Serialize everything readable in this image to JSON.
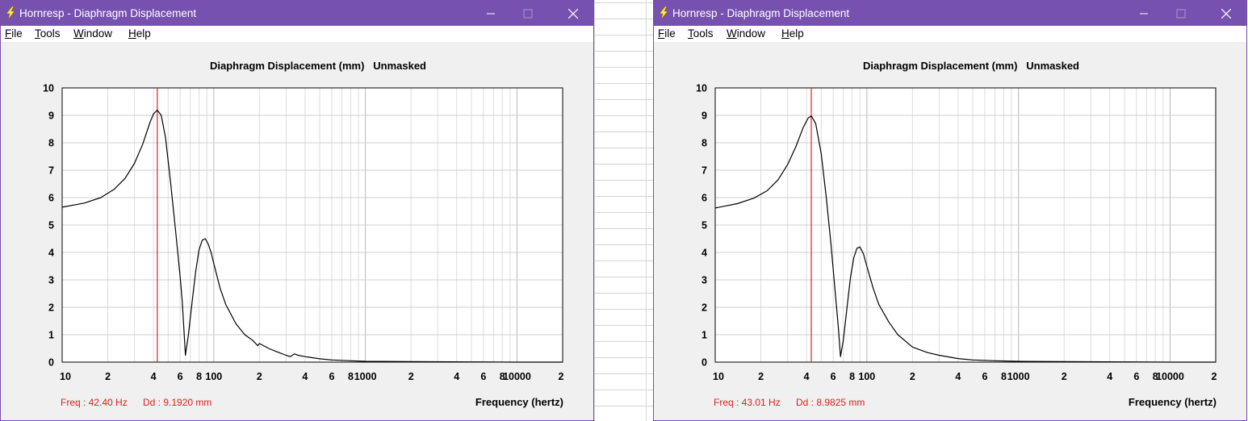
{
  "windows": [
    {
      "title": "Hornresp - Diaphragm Displacement",
      "menu": [
        {
          "label": "File",
          "accel": "F",
          "rest": "ile"
        },
        {
          "label": "Tools",
          "accel": "T",
          "rest": "ools"
        },
        {
          "label": "Window",
          "accel": "W",
          "rest": "indow"
        },
        {
          "label": "Help",
          "accel": "H",
          "rest": "elp"
        }
      ],
      "chart_title": "Diaphragm Displacement (mm)   Unmasked",
      "readout_freq": "Freq : 42.40 Hz",
      "readout_dd": "Dd : 9.1920 mm",
      "xlabel": "Frequency (hertz)",
      "chart_data": {
        "type": "line",
        "title": "Diaphragm Displacement (mm)   Unmasked",
        "xlabel": "Frequency (hertz)",
        "ylabel": "",
        "xscale": "log",
        "xlim": [
          10,
          20000
        ],
        "ylim": [
          0,
          10
        ],
        "grid": true,
        "x_tick_labels": [
          "10",
          "2",
          "4",
          "6",
          "8",
          "100",
          "2",
          "4",
          "6",
          "8",
          "1000",
          "2",
          "4",
          "6",
          "8",
          "10000",
          "2"
        ],
        "y_tick_labels": [
          "0",
          "1",
          "2",
          "3",
          "4",
          "5",
          "6",
          "7",
          "8",
          "9",
          "10"
        ],
        "marker_x": 42.4,
        "series": [
          {
            "x": [
              10,
              14,
              18,
              22,
              26,
              30,
              34,
              38,
              40,
              42.4,
              45,
              48,
              52,
              56,
              60,
              62,
              65,
              68,
              72,
              76,
              80,
              84,
              88,
              92,
              96,
              100,
              110,
              120,
              140,
              160,
              180,
              195,
              200,
              230,
              260,
              300,
              320,
              340,
              360,
              400,
              500,
              600,
              800,
              1000,
              2000,
              5000,
              10000,
              20000
            ],
            "y": [
              5.65,
              5.8,
              6.0,
              6.3,
              6.7,
              7.25,
              7.95,
              8.75,
              9.05,
              9.19,
              9.0,
              8.2,
              6.5,
              4.8,
              3.1,
              2.2,
              0.25,
              1.0,
              2.2,
              3.3,
              4.1,
              4.45,
              4.5,
              4.3,
              4.0,
              3.6,
              2.7,
              2.1,
              1.4,
              1.0,
              0.8,
              0.6,
              0.68,
              0.5,
              0.38,
              0.25,
              0.2,
              0.3,
              0.25,
              0.2,
              0.12,
              0.08,
              0.05,
              0.03,
              0.02,
              0.01,
              0.0,
              0.0
            ]
          }
        ]
      }
    },
    {
      "title": "Hornresp - Diaphragm Displacement",
      "menu": [
        {
          "label": "File",
          "accel": "F",
          "rest": "ile"
        },
        {
          "label": "Tools",
          "accel": "T",
          "rest": "ools"
        },
        {
          "label": "Window",
          "accel": "W",
          "rest": "indow"
        },
        {
          "label": "Help",
          "accel": "H",
          "rest": "elp"
        }
      ],
      "chart_title": "Diaphragm Displacement (mm)   Unmasked",
      "readout_freq": "Freq : 43.01 Hz",
      "readout_dd": "Dd : 8.9825 mm",
      "xlabel": "Frequency (hertz)",
      "chart_data": {
        "type": "line",
        "title": "Diaphragm Displacement (mm)   Unmasked",
        "xlabel": "Frequency (hertz)",
        "ylabel": "",
        "xscale": "log",
        "xlim": [
          10,
          20000
        ],
        "ylim": [
          0,
          10
        ],
        "grid": true,
        "x_tick_labels": [
          "10",
          "2",
          "4",
          "6",
          "8",
          "100",
          "2",
          "4",
          "6",
          "8",
          "1000",
          "2",
          "4",
          "6",
          "8",
          "10000",
          "2"
        ],
        "y_tick_labels": [
          "0",
          "1",
          "2",
          "3",
          "4",
          "5",
          "6",
          "7",
          "8",
          "9",
          "10"
        ],
        "marker_x": 43.01,
        "series": [
          {
            "x": [
              10,
              14,
              18,
              22,
              26,
              30,
              34,
              38,
              41,
              43,
              46,
              50,
              54,
              58,
              62,
              65,
              67,
              70,
              74,
              78,
              82,
              86,
              90,
              95,
              100,
              110,
              120,
              140,
              160,
              200,
              250,
              300,
              400,
              500,
              700,
              1000,
              2000,
              5000,
              10000,
              20000
            ],
            "y": [
              5.62,
              5.78,
              5.98,
              6.25,
              6.65,
              7.2,
              7.85,
              8.55,
              8.9,
              8.98,
              8.7,
              7.6,
              6.0,
              4.3,
              2.5,
              1.2,
              0.2,
              0.8,
              2.0,
              3.1,
              3.8,
              4.15,
              4.2,
              3.95,
              3.5,
              2.7,
              2.1,
              1.45,
              1.0,
              0.55,
              0.35,
              0.25,
              0.13,
              0.08,
              0.05,
              0.03,
              0.02,
              0.01,
              0.0,
              0.0
            ]
          }
        ]
      }
    }
  ]
}
